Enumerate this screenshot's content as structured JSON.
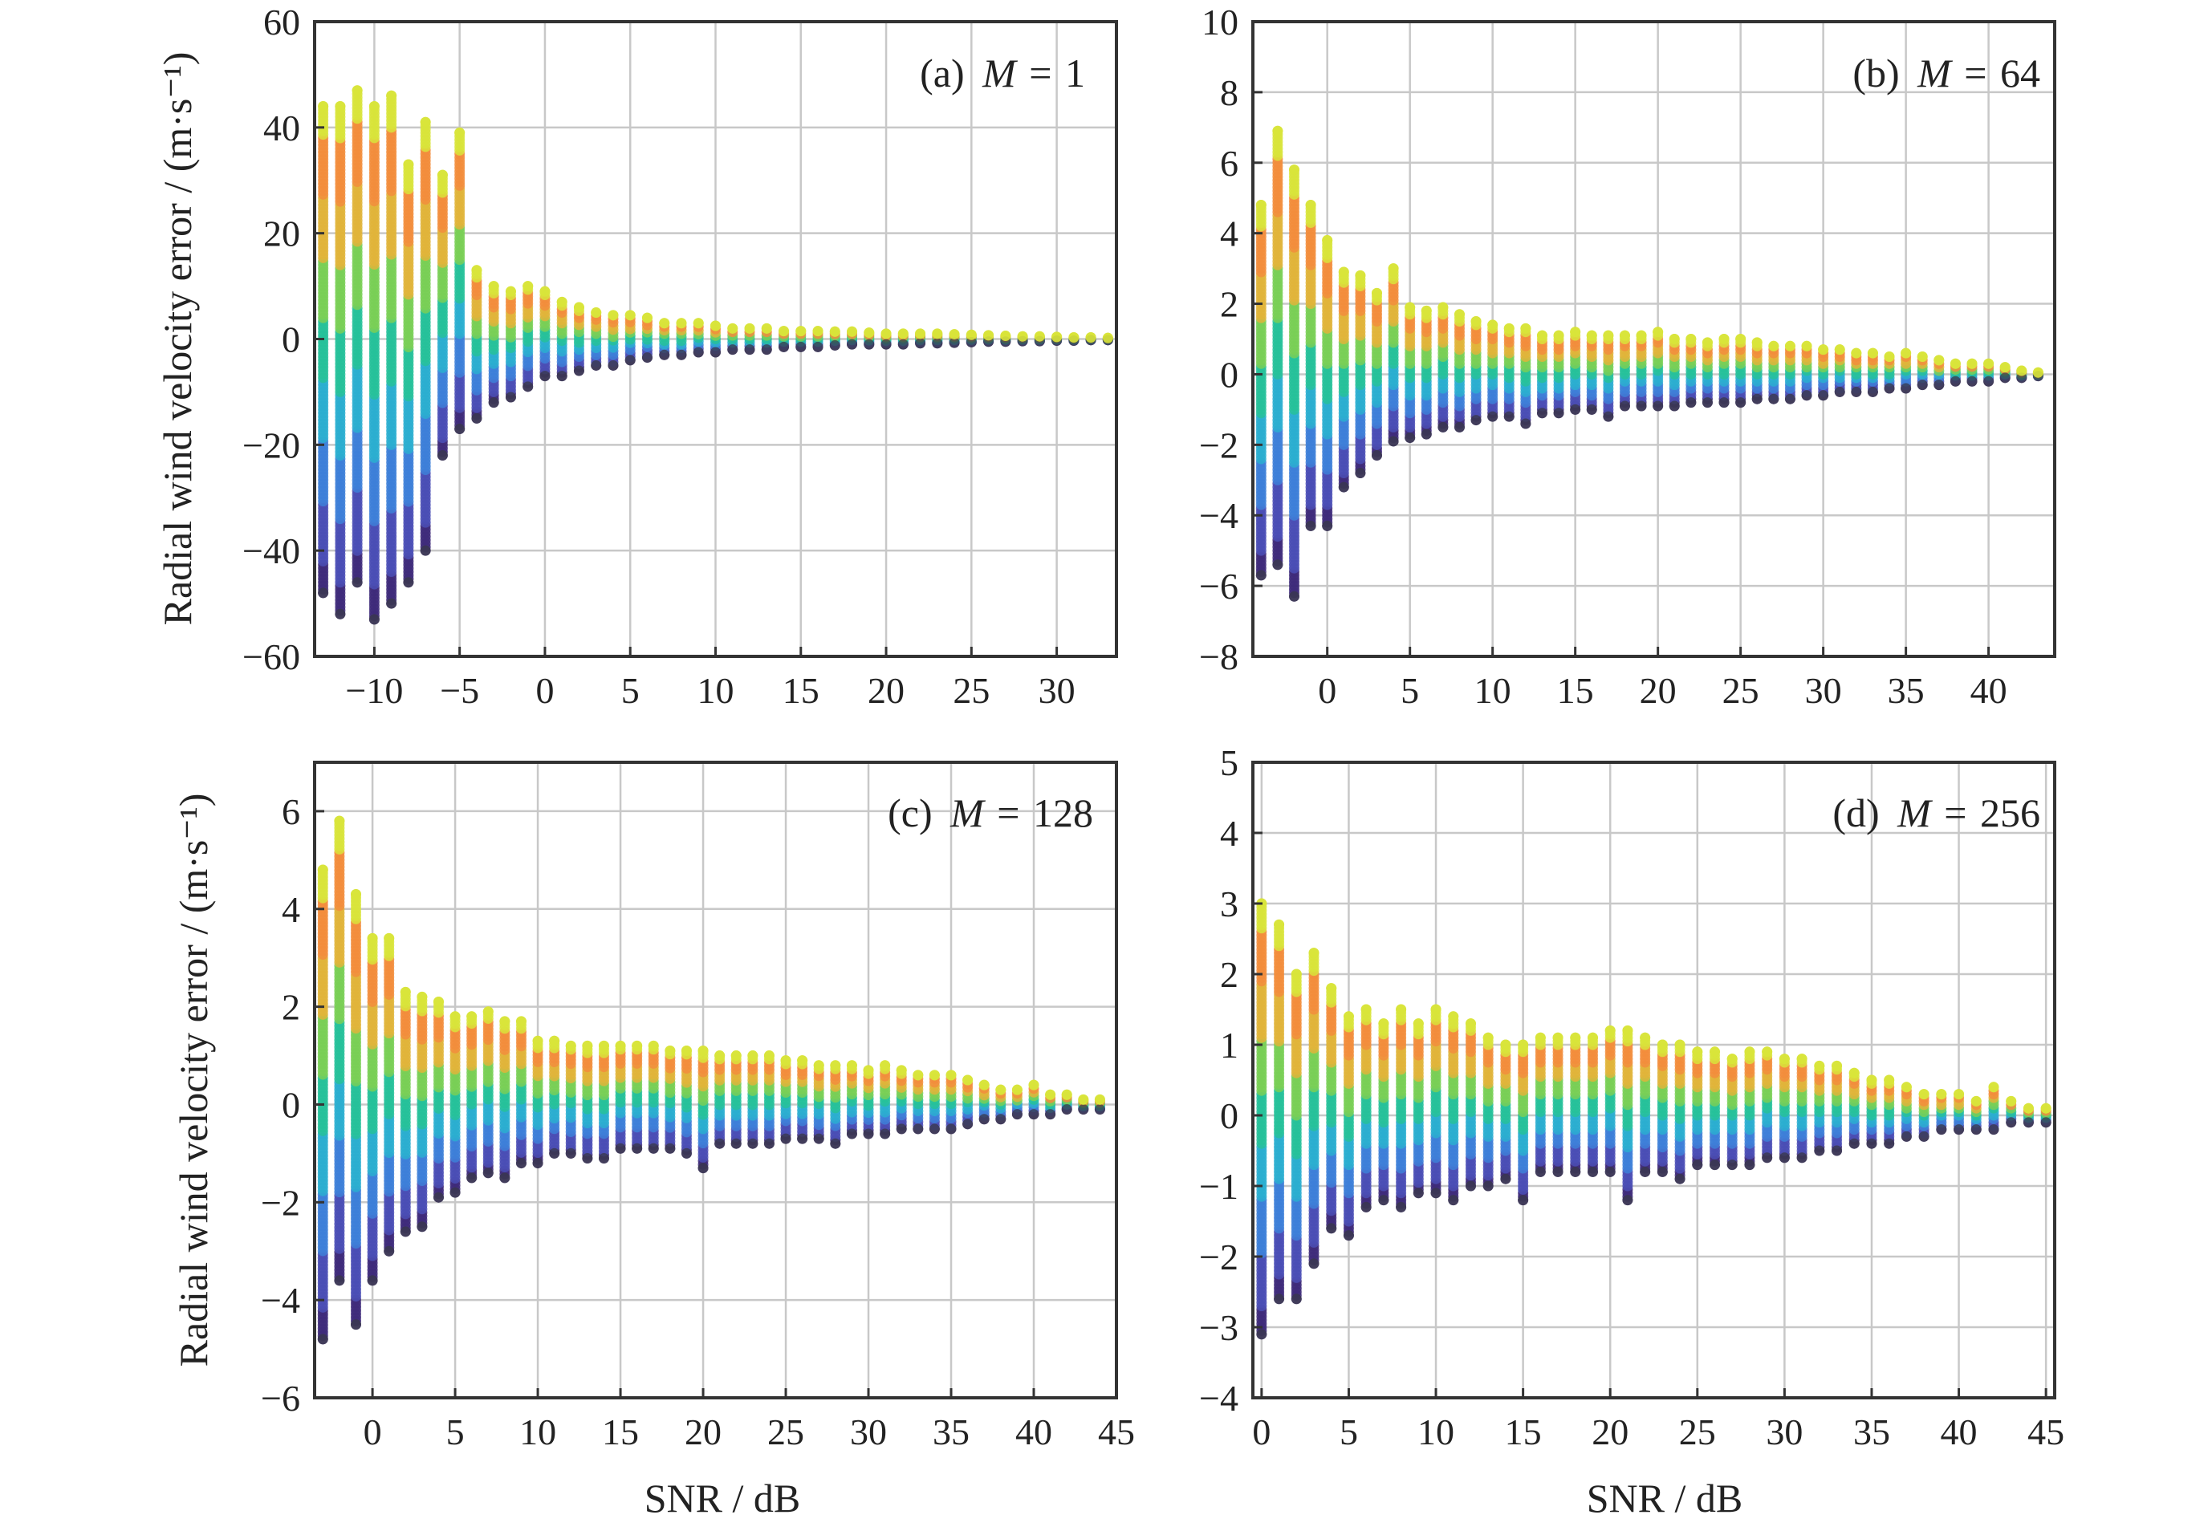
{
  "chart_data": [
    {
      "type": "scatter",
      "panel_label": "(a) M = 1",
      "panel_prefix": "(a)",
      "panel_var": "M",
      "panel_value": "1",
      "xlabel": "",
      "ylabel": "Radial wind velocity error / (m·s⁻¹)",
      "xlim": [
        -13.5,
        33.5
      ],
      "ylim": [
        -60,
        60
      ],
      "xticks": [
        -10,
        -5,
        0,
        5,
        10,
        15,
        20,
        25,
        30
      ],
      "yticks": [
        -60,
        -40,
        -20,
        0,
        20,
        40,
        60
      ],
      "xtick_labels": [
        "−10",
        "−5",
        "0",
        "5",
        "10",
        "15",
        "20",
        "25",
        "30"
      ],
      "ytick_labels": [
        "−60",
        "−40",
        "−20",
        "0",
        "20",
        "40",
        "60"
      ],
      "grid": true,
      "columns": [
        {
          "x": -13,
          "min": -48,
          "max": 44
        },
        {
          "x": -12,
          "min": -52,
          "max": 44
        },
        {
          "x": -11,
          "min": -46,
          "max": 47
        },
        {
          "x": -10,
          "min": -53,
          "max": 44
        },
        {
          "x": -9,
          "min": -50,
          "max": 46
        },
        {
          "x": -8,
          "min": -46,
          "max": 33
        },
        {
          "x": -7,
          "min": -40,
          "max": 41
        },
        {
          "x": -6,
          "min": -22,
          "max": 31
        },
        {
          "x": -5,
          "min": -17,
          "max": 39
        },
        {
          "x": -4,
          "min": -15,
          "max": 13
        },
        {
          "x": -3,
          "min": -12,
          "max": 10
        },
        {
          "x": -2,
          "min": -11,
          "max": 9
        },
        {
          "x": -1,
          "min": -9,
          "max": 10
        },
        {
          "x": 0,
          "min": -7,
          "max": 9
        },
        {
          "x": 1,
          "min": -7,
          "max": 7
        },
        {
          "x": 2,
          "min": -6,
          "max": 6
        },
        {
          "x": 3,
          "min": -5,
          "max": 5
        },
        {
          "x": 4,
          "min": -5,
          "max": 4.5
        },
        {
          "x": 5,
          "min": -4,
          "max": 4.5
        },
        {
          "x": 6,
          "min": -3.5,
          "max": 4
        },
        {
          "x": 7,
          "min": -3,
          "max": 3
        },
        {
          "x": 8,
          "min": -3,
          "max": 3
        },
        {
          "x": 9,
          "min": -2.5,
          "max": 3
        },
        {
          "x": 10,
          "min": -2.5,
          "max": 2.5
        },
        {
          "x": 11,
          "min": -2,
          "max": 2
        },
        {
          "x": 12,
          "min": -2,
          "max": 2
        },
        {
          "x": 13,
          "min": -2,
          "max": 2
        },
        {
          "x": 14,
          "min": -1.5,
          "max": 1.5
        },
        {
          "x": 15,
          "min": -1.5,
          "max": 1.5
        },
        {
          "x": 16,
          "min": -1.5,
          "max": 1.5
        },
        {
          "x": 17,
          "min": -1.2,
          "max": 1.4
        },
        {
          "x": 18,
          "min": -1,
          "max": 1.4
        },
        {
          "x": 19,
          "min": -1,
          "max": 1.2
        },
        {
          "x": 20,
          "min": -1,
          "max": 1
        },
        {
          "x": 21,
          "min": -1,
          "max": 1
        },
        {
          "x": 22,
          "min": -0.8,
          "max": 1
        },
        {
          "x": 23,
          "min": -0.8,
          "max": 1
        },
        {
          "x": 24,
          "min": -0.7,
          "max": 0.9
        },
        {
          "x": 25,
          "min": -0.6,
          "max": 0.8
        },
        {
          "x": 26,
          "min": -0.5,
          "max": 0.7
        },
        {
          "x": 27,
          "min": -0.5,
          "max": 0.6
        },
        {
          "x": 28,
          "min": -0.4,
          "max": 0.5
        },
        {
          "x": 29,
          "min": -0.4,
          "max": 0.5
        },
        {
          "x": 30,
          "min": -0.3,
          "max": 0.4
        },
        {
          "x": 31,
          "min": -0.3,
          "max": 0.3
        },
        {
          "x": 32,
          "min": -0.2,
          "max": 0.3
        },
        {
          "x": 33,
          "min": -0.2,
          "max": 0.2
        }
      ]
    },
    {
      "type": "scatter",
      "panel_label": "(b) M = 64",
      "panel_prefix": "(b)",
      "panel_var": "M",
      "panel_value": "64",
      "xlabel": "",
      "ylabel": "",
      "xlim": [
        -4.5,
        44
      ],
      "ylim": [
        -8,
        10
      ],
      "xticks": [
        0,
        5,
        10,
        15,
        20,
        25,
        30,
        35,
        40
      ],
      "yticks": [
        -8,
        -6,
        -4,
        -2,
        0,
        2,
        4,
        6,
        8,
        10
      ],
      "xtick_labels": [
        "0",
        "5",
        "10",
        "15",
        "20",
        "25",
        "30",
        "35",
        "40"
      ],
      "ytick_labels": [
        "−8",
        "−6",
        "−4",
        "−2",
        "0",
        "2",
        "4",
        "6",
        "8",
        "10"
      ],
      "grid": true,
      "columns": [
        {
          "x": -4,
          "min": -5.7,
          "max": 4.8
        },
        {
          "x": -3,
          "min": -5.4,
          "max": 6.9
        },
        {
          "x": -2,
          "min": -6.3,
          "max": 5.8
        },
        {
          "x": -1,
          "min": -4.3,
          "max": 4.8
        },
        {
          "x": 0,
          "min": -4.3,
          "max": 3.8
        },
        {
          "x": 1,
          "min": -3.2,
          "max": 2.9
        },
        {
          "x": 2,
          "min": -2.8,
          "max": 2.8
        },
        {
          "x": 3,
          "min": -2.3,
          "max": 2.3
        },
        {
          "x": 4,
          "min": -1.9,
          "max": 3.0
        },
        {
          "x": 5,
          "min": -1.8,
          "max": 1.9
        },
        {
          "x": 6,
          "min": -1.7,
          "max": 1.8
        },
        {
          "x": 7,
          "min": -1.5,
          "max": 1.9
        },
        {
          "x": 8,
          "min": -1.5,
          "max": 1.7
        },
        {
          "x": 9,
          "min": -1.3,
          "max": 1.5
        },
        {
          "x": 10,
          "min": -1.2,
          "max": 1.4
        },
        {
          "x": 11,
          "min": -1.2,
          "max": 1.3
        },
        {
          "x": 12,
          "min": -1.4,
          "max": 1.3
        },
        {
          "x": 13,
          "min": -1.1,
          "max": 1.1
        },
        {
          "x": 14,
          "min": -1.1,
          "max": 1.1
        },
        {
          "x": 15,
          "min": -1.0,
          "max": 1.2
        },
        {
          "x": 16,
          "min": -1.0,
          "max": 1.1
        },
        {
          "x": 17,
          "min": -1.2,
          "max": 1.1
        },
        {
          "x": 18,
          "min": -0.9,
          "max": 1.1
        },
        {
          "x": 19,
          "min": -0.9,
          "max": 1.1
        },
        {
          "x": 20,
          "min": -0.9,
          "max": 1.2
        },
        {
          "x": 21,
          "min": -0.9,
          "max": 1.0
        },
        {
          "x": 22,
          "min": -0.8,
          "max": 1.0
        },
        {
          "x": 23,
          "min": -0.8,
          "max": 0.9
        },
        {
          "x": 24,
          "min": -0.8,
          "max": 1.0
        },
        {
          "x": 25,
          "min": -0.8,
          "max": 1.0
        },
        {
          "x": 26,
          "min": -0.7,
          "max": 0.9
        },
        {
          "x": 27,
          "min": -0.7,
          "max": 0.8
        },
        {
          "x": 28,
          "min": -0.7,
          "max": 0.8
        },
        {
          "x": 29,
          "min": -0.6,
          "max": 0.8
        },
        {
          "x": 30,
          "min": -0.6,
          "max": 0.7
        },
        {
          "x": 31,
          "min": -0.5,
          "max": 0.7
        },
        {
          "x": 32,
          "min": -0.5,
          "max": 0.6
        },
        {
          "x": 33,
          "min": -0.5,
          "max": 0.6
        },
        {
          "x": 34,
          "min": -0.4,
          "max": 0.5
        },
        {
          "x": 35,
          "min": -0.4,
          "max": 0.6
        },
        {
          "x": 36,
          "min": -0.3,
          "max": 0.5
        },
        {
          "x": 37,
          "min": -0.3,
          "max": 0.4
        },
        {
          "x": 38,
          "min": -0.2,
          "max": 0.3
        },
        {
          "x": 39,
          "min": -0.2,
          "max": 0.3
        },
        {
          "x": 40,
          "min": -0.2,
          "max": 0.3
        },
        {
          "x": 41,
          "min": -0.1,
          "max": 0.2
        },
        {
          "x": 42,
          "min": -0.1,
          "max": 0.1
        },
        {
          "x": 43,
          "min": -0.05,
          "max": 0.05
        }
      ]
    },
    {
      "type": "scatter",
      "panel_label": "(c) M = 128",
      "panel_prefix": "(c)",
      "panel_var": "M",
      "panel_value": "128",
      "xlabel": "SNR / dB",
      "ylabel": "Radial wind velocity error / (m·s⁻¹)",
      "xlim": [
        -3.5,
        45
      ],
      "ylim": [
        -6,
        7
      ],
      "xticks": [
        0,
        5,
        10,
        15,
        20,
        25,
        30,
        35,
        40,
        45
      ],
      "yticks": [
        -6,
        -4,
        -2,
        0,
        2,
        4,
        6
      ],
      "xtick_labels": [
        "0",
        "5",
        "10",
        "15",
        "20",
        "25",
        "30",
        "35",
        "40",
        "45"
      ],
      "ytick_labels": [
        "−6",
        "−4",
        "−2",
        "0",
        "2",
        "4",
        "6"
      ],
      "grid": true,
      "columns": [
        {
          "x": -3,
          "min": -4.8,
          "max": 4.8
        },
        {
          "x": -2,
          "min": -3.6,
          "max": 5.8
        },
        {
          "x": -1,
          "min": -4.5,
          "max": 4.3
        },
        {
          "x": 0,
          "min": -3.6,
          "max": 3.4
        },
        {
          "x": 1,
          "min": -3.0,
          "max": 3.4
        },
        {
          "x": 2,
          "min": -2.6,
          "max": 2.3
        },
        {
          "x": 3,
          "min": -2.5,
          "max": 2.2
        },
        {
          "x": 4,
          "min": -1.9,
          "max": 2.1
        },
        {
          "x": 5,
          "min": -1.8,
          "max": 1.8
        },
        {
          "x": 6,
          "min": -1.5,
          "max": 1.8
        },
        {
          "x": 7,
          "min": -1.4,
          "max": 1.9
        },
        {
          "x": 8,
          "min": -1.5,
          "max": 1.7
        },
        {
          "x": 9,
          "min": -1.2,
          "max": 1.7
        },
        {
          "x": 10,
          "min": -1.2,
          "max": 1.3
        },
        {
          "x": 11,
          "min": -1.0,
          "max": 1.3
        },
        {
          "x": 12,
          "min": -1.0,
          "max": 1.2
        },
        {
          "x": 13,
          "min": -1.1,
          "max": 1.2
        },
        {
          "x": 14,
          "min": -1.1,
          "max": 1.2
        },
        {
          "x": 15,
          "min": -0.9,
          "max": 1.2
        },
        {
          "x": 16,
          "min": -0.9,
          "max": 1.2
        },
        {
          "x": 17,
          "min": -0.9,
          "max": 1.2
        },
        {
          "x": 18,
          "min": -0.9,
          "max": 1.1
        },
        {
          "x": 19,
          "min": -1.0,
          "max": 1.1
        },
        {
          "x": 20,
          "min": -1.3,
          "max": 1.1
        },
        {
          "x": 21,
          "min": -0.8,
          "max": 1.0
        },
        {
          "x": 22,
          "min": -0.8,
          "max": 1.0
        },
        {
          "x": 23,
          "min": -0.8,
          "max": 1.0
        },
        {
          "x": 24,
          "min": -0.8,
          "max": 1.0
        },
        {
          "x": 25,
          "min": -0.7,
          "max": 0.9
        },
        {
          "x": 26,
          "min": -0.7,
          "max": 0.9
        },
        {
          "x": 27,
          "min": -0.7,
          "max": 0.8
        },
        {
          "x": 28,
          "min": -0.8,
          "max": 0.8
        },
        {
          "x": 29,
          "min": -0.6,
          "max": 0.8
        },
        {
          "x": 30,
          "min": -0.6,
          "max": 0.7
        },
        {
          "x": 31,
          "min": -0.6,
          "max": 0.8
        },
        {
          "x": 32,
          "min": -0.5,
          "max": 0.7
        },
        {
          "x": 33,
          "min": -0.5,
          "max": 0.6
        },
        {
          "x": 34,
          "min": -0.5,
          "max": 0.6
        },
        {
          "x": 35,
          "min": -0.5,
          "max": 0.6
        },
        {
          "x": 36,
          "min": -0.4,
          "max": 0.5
        },
        {
          "x": 37,
          "min": -0.3,
          "max": 0.4
        },
        {
          "x": 38,
          "min": -0.3,
          "max": 0.3
        },
        {
          "x": 39,
          "min": -0.2,
          "max": 0.3
        },
        {
          "x": 40,
          "min": -0.2,
          "max": 0.4
        },
        {
          "x": 41,
          "min": -0.2,
          "max": 0.2
        },
        {
          "x": 42,
          "min": -0.1,
          "max": 0.2
        },
        {
          "x": 43,
          "min": -0.1,
          "max": 0.1
        },
        {
          "x": 44,
          "min": -0.1,
          "max": 0.1
        }
      ]
    },
    {
      "type": "scatter",
      "panel_label": "(d) M = 256",
      "panel_prefix": "(d)",
      "panel_var": "M",
      "panel_value": "256",
      "xlabel": "SNR / dB",
      "ylabel": "",
      "xlim": [
        -0.5,
        45.5
      ],
      "ylim": [
        -4,
        5
      ],
      "xticks": [
        0,
        5,
        10,
        15,
        20,
        25,
        30,
        35,
        40,
        45
      ],
      "yticks": [
        -4,
        -3,
        -2,
        -1,
        0,
        1,
        2,
        3,
        4,
        5
      ],
      "xtick_labels": [
        "0",
        "5",
        "10",
        "15",
        "20",
        "25",
        "30",
        "35",
        "40",
        "45"
      ],
      "ytick_labels": [
        "−4",
        "−3",
        "−2",
        "−1",
        "0",
        "1",
        "2",
        "3",
        "4",
        "5"
      ],
      "grid": true,
      "columns": [
        {
          "x": 0,
          "min": -3.1,
          "max": 3.0
        },
        {
          "x": 1,
          "min": -2.6,
          "max": 2.7
        },
        {
          "x": 2,
          "min": -2.6,
          "max": 2.0
        },
        {
          "x": 3,
          "min": -2.1,
          "max": 2.3
        },
        {
          "x": 4,
          "min": -1.6,
          "max": 1.8
        },
        {
          "x": 5,
          "min": -1.7,
          "max": 1.4
        },
        {
          "x": 6,
          "min": -1.3,
          "max": 1.5
        },
        {
          "x": 7,
          "min": -1.2,
          "max": 1.3
        },
        {
          "x": 8,
          "min": -1.3,
          "max": 1.5
        },
        {
          "x": 9,
          "min": -1.1,
          "max": 1.3
        },
        {
          "x": 10,
          "min": -1.1,
          "max": 1.5
        },
        {
          "x": 11,
          "min": -1.2,
          "max": 1.4
        },
        {
          "x": 12,
          "min": -1.0,
          "max": 1.3
        },
        {
          "x": 13,
          "min": -1.0,
          "max": 1.1
        },
        {
          "x": 14,
          "min": -0.9,
          "max": 1.0
        },
        {
          "x": 15,
          "min": -1.2,
          "max": 1.0
        },
        {
          "x": 16,
          "min": -0.8,
          "max": 1.1
        },
        {
          "x": 17,
          "min": -0.8,
          "max": 1.1
        },
        {
          "x": 18,
          "min": -0.8,
          "max": 1.1
        },
        {
          "x": 19,
          "min": -0.8,
          "max": 1.1
        },
        {
          "x": 20,
          "min": -0.8,
          "max": 1.2
        },
        {
          "x": 21,
          "min": -1.2,
          "max": 1.2
        },
        {
          "x": 22,
          "min": -0.8,
          "max": 1.1
        },
        {
          "x": 23,
          "min": -0.8,
          "max": 1.0
        },
        {
          "x": 24,
          "min": -0.9,
          "max": 1.0
        },
        {
          "x": 25,
          "min": -0.7,
          "max": 0.9
        },
        {
          "x": 26,
          "min": -0.7,
          "max": 0.9
        },
        {
          "x": 27,
          "min": -0.7,
          "max": 0.8
        },
        {
          "x": 28,
          "min": -0.7,
          "max": 0.9
        },
        {
          "x": 29,
          "min": -0.6,
          "max": 0.9
        },
        {
          "x": 30,
          "min": -0.6,
          "max": 0.8
        },
        {
          "x": 31,
          "min": -0.6,
          "max": 0.8
        },
        {
          "x": 32,
          "min": -0.5,
          "max": 0.7
        },
        {
          "x": 33,
          "min": -0.5,
          "max": 0.7
        },
        {
          "x": 34,
          "min": -0.4,
          "max": 0.6
        },
        {
          "x": 35,
          "min": -0.4,
          "max": 0.5
        },
        {
          "x": 36,
          "min": -0.4,
          "max": 0.5
        },
        {
          "x": 37,
          "min": -0.3,
          "max": 0.4
        },
        {
          "x": 38,
          "min": -0.3,
          "max": 0.3
        },
        {
          "x": 39,
          "min": -0.2,
          "max": 0.3
        },
        {
          "x": 40,
          "min": -0.2,
          "max": 0.3
        },
        {
          "x": 41,
          "min": -0.2,
          "max": 0.2
        },
        {
          "x": 42,
          "min": -0.2,
          "max": 0.4
        },
        {
          "x": 43,
          "min": -0.1,
          "max": 0.2
        },
        {
          "x": 44,
          "min": -0.1,
          "max": 0.1
        },
        {
          "x": 45,
          "min": -0.1,
          "max": 0.1
        }
      ]
    }
  ],
  "colors": {
    "colormap": [
      "#3e2a7a",
      "#4a4db5",
      "#3d7fd8",
      "#2aaed0",
      "#26c19a",
      "#79cf56",
      "#e0b43a",
      "#f28d3c",
      "#d8e43a"
    ],
    "outlier_dark": "#3a3a4a",
    "frame": "#333333",
    "grid": "#c8c8c8"
  }
}
